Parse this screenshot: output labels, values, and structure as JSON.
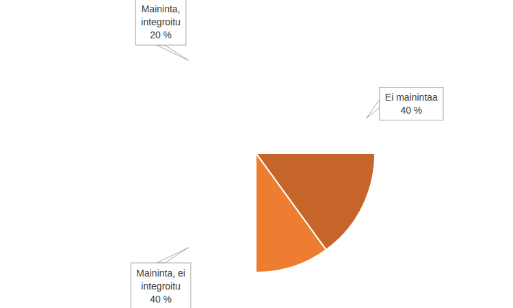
{
  "chart_data": {
    "type": "pie",
    "categories": [
      "Ei mainintaa",
      "Maininta, ei integroitu",
      "Maininta, integroitu"
    ],
    "values": [
      40,
      40,
      20
    ],
    "value_labels": [
      "40 %",
      "40 %",
      "20 %"
    ],
    "colors": [
      "#C5652A",
      "#ED7D31",
      "#F4B9A0"
    ],
    "data_labels": true
  }
}
